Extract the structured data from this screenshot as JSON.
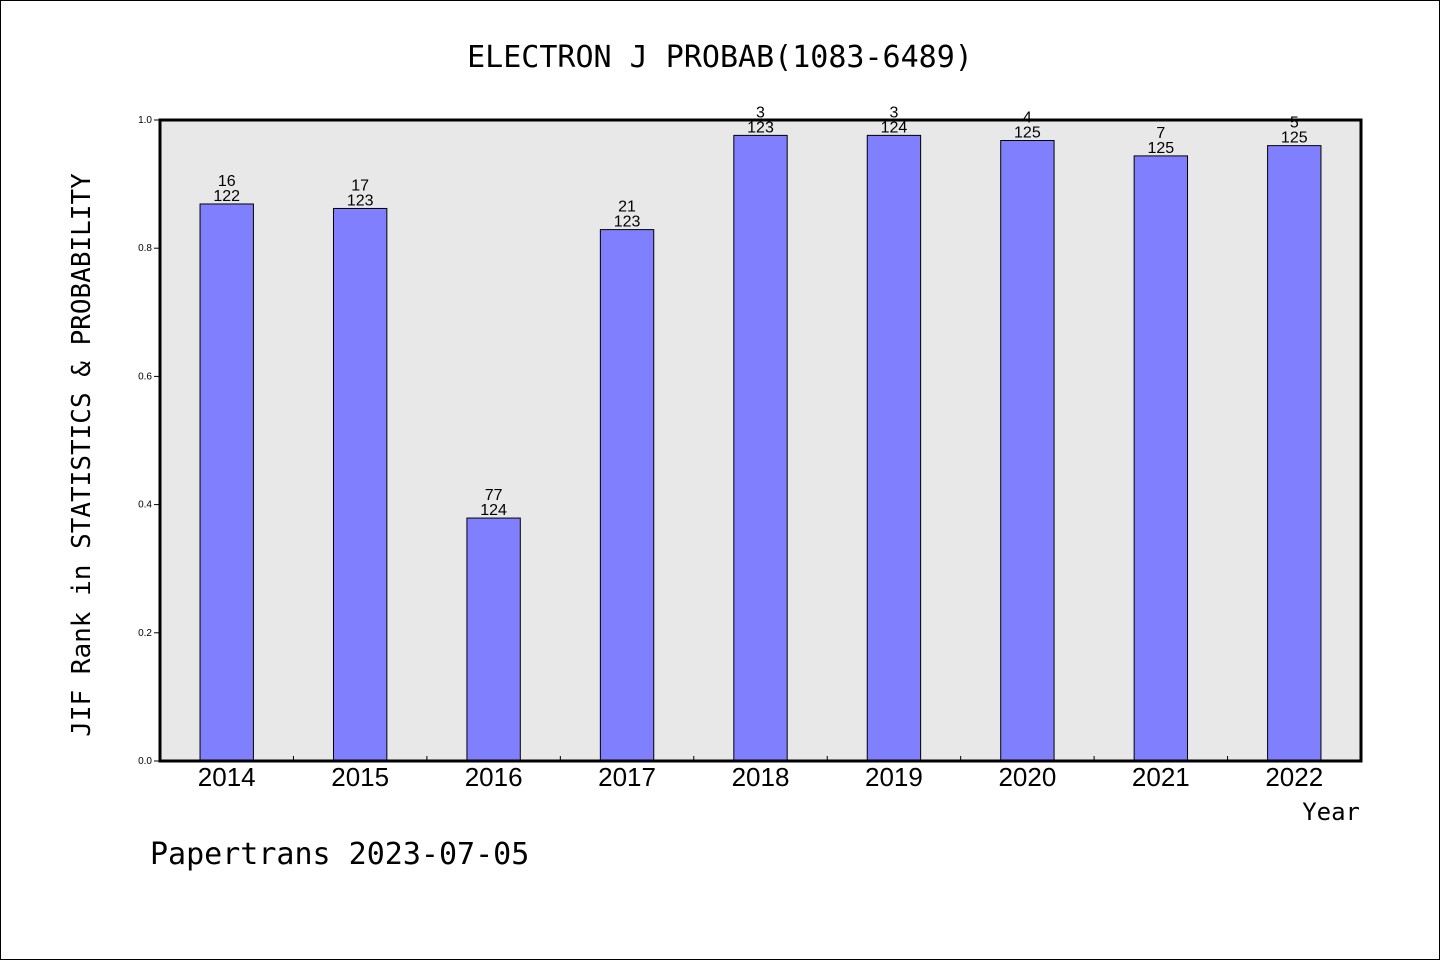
{
  "chart_data": {
    "type": "bar",
    "title": "ELECTRON J PROBAB(1083-6489)",
    "xlabel": "Year",
    "ylabel": "JIF Rank in STATISTICS & PROBABILITY",
    "ylim": [
      0,
      1.0
    ],
    "yticks": [
      "0.0",
      "0.2",
      "0.4",
      "0.6",
      "0.8",
      "1.0"
    ],
    "grid": false,
    "categories": [
      "2014",
      "2015",
      "2016",
      "2017",
      "2018",
      "2019",
      "2020",
      "2021",
      "2022"
    ],
    "values": [
      0.869,
      0.862,
      0.379,
      0.829,
      0.976,
      0.976,
      0.968,
      0.944,
      0.96
    ],
    "labels": [
      {
        "rank": "16",
        "total": "122"
      },
      {
        "rank": "17",
        "total": "123"
      },
      {
        "rank": "77",
        "total": "124"
      },
      {
        "rank": "21",
        "total": "123"
      },
      {
        "rank": "3",
        "total": "123"
      },
      {
        "rank": "3",
        "total": "124"
      },
      {
        "rank": "4",
        "total": "125"
      },
      {
        "rank": "7",
        "total": "125"
      },
      {
        "rank": "5",
        "total": "125"
      }
    ],
    "colors": {
      "bar": "#8080ff",
      "plot_background": "#e8e8e8"
    }
  },
  "footer": "Papertrans 2023-07-05"
}
